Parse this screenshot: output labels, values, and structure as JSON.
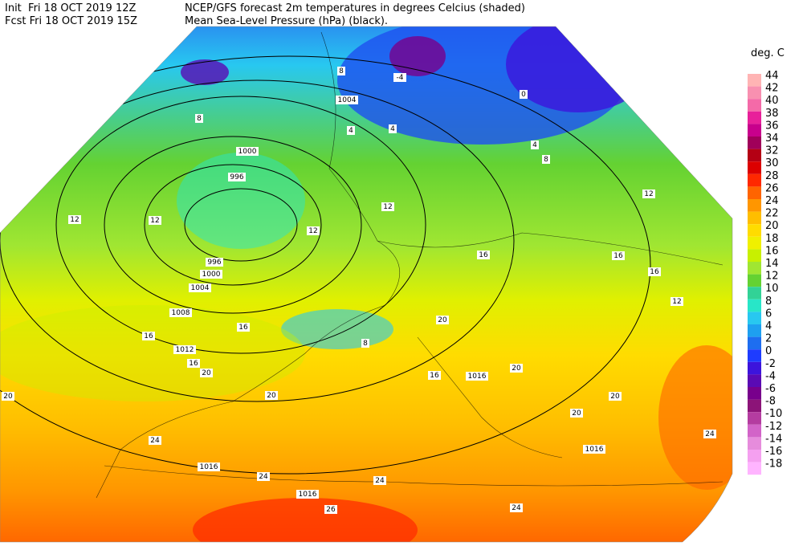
{
  "header": {
    "init": "Init  Fri 18 OCT 2019 12Z",
    "fcst": "Fcst Fri 18 OCT 2019 15Z",
    "title": "NCEP/GFS forecast 2m temperatures in degrees Celcius (shaded)",
    "subtitle": "Mean Sea-Level Pressure (hPa) (black)."
  },
  "legend": {
    "title": "deg. C",
    "items": [
      {
        "value": 44,
        "color": "#ffb4b4"
      },
      {
        "value": 42,
        "color": "#f890b0"
      },
      {
        "value": 40,
        "color": "#f46aa8"
      },
      {
        "value": 38,
        "color": "#e8209a"
      },
      {
        "value": 36,
        "color": "#c8008c"
      },
      {
        "value": 34,
        "color": "#a0005a"
      },
      {
        "value": 32,
        "color": "#b40014"
      },
      {
        "value": 30,
        "color": "#dc0000"
      },
      {
        "value": 28,
        "color": "#ff2800"
      },
      {
        "value": 26,
        "color": "#ff6400"
      },
      {
        "value": 24,
        "color": "#ff9600"
      },
      {
        "value": 22,
        "color": "#ffbe00"
      },
      {
        "value": 20,
        "color": "#ffdc00"
      },
      {
        "value": 18,
        "color": "#f0f000"
      },
      {
        "value": 16,
        "color": "#c8f000"
      },
      {
        "value": 14,
        "color": "#a0e632"
      },
      {
        "value": 12,
        "color": "#64d232"
      },
      {
        "value": 10,
        "color": "#32d296"
      },
      {
        "value": 8,
        "color": "#28e6c8"
      },
      {
        "value": 6,
        "color": "#28c8f0"
      },
      {
        "value": 4,
        "color": "#1ea0f0"
      },
      {
        "value": 2,
        "color": "#1e6ef0"
      },
      {
        "value": 0,
        "color": "#1e3cff"
      },
      {
        "value": -2,
        "color": "#3c14dc"
      },
      {
        "value": -4,
        "color": "#5a0ab4"
      },
      {
        "value": -6,
        "color": "#78008c"
      },
      {
        "value": -8,
        "color": "#8c1478"
      },
      {
        "value": -10,
        "color": "#b43ca0"
      },
      {
        "value": -12,
        "color": "#d264c8"
      },
      {
        "value": -14,
        "color": "#e68cdc"
      },
      {
        "value": -16,
        "color": "#f5a0f0"
      },
      {
        "value": -18,
        "color": "#ffb4ff"
      }
    ]
  },
  "pressure_labels": [
    1004,
    1000,
    996,
    996,
    1000,
    1004,
    1008,
    1012,
    1016,
    1016,
    1016,
    1016
  ],
  "temperature_labels": [
    8,
    8,
    12,
    12,
    12,
    12,
    4,
    4,
    -4,
    0,
    4,
    8,
    12,
    16,
    16,
    16,
    12,
    16,
    16,
    16,
    20,
    20,
    16,
    20,
    20,
    20,
    20,
    24,
    24,
    24,
    24,
    24,
    26,
    20,
    8
  ]
}
